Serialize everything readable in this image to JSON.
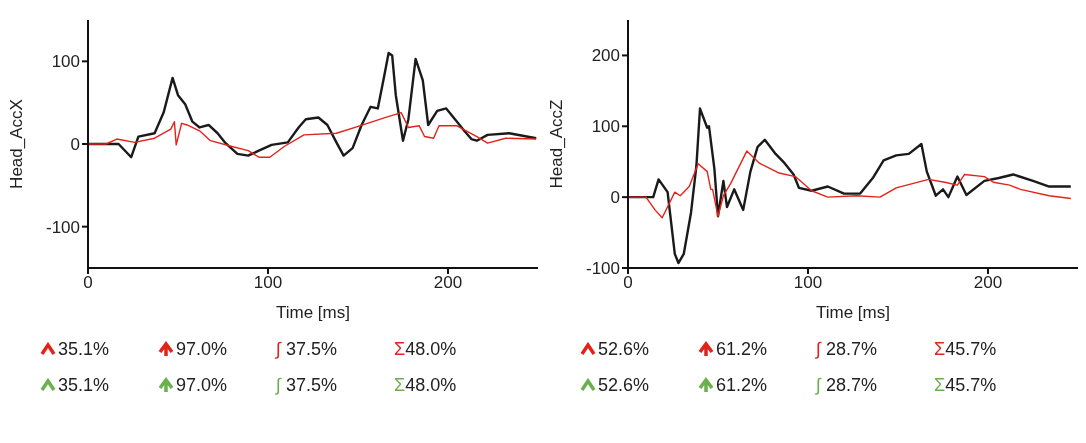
{
  "chart_data": [
    {
      "type": "line",
      "xlabel": "Time [ms]",
      "ylabel": "Head_AccX",
      "xlim": [
        0,
        250
      ],
      "ylim": [
        -150,
        150
      ],
      "xticks": [
        0,
        100,
        200
      ],
      "yticks": [
        -100,
        0,
        100
      ],
      "series": [
        {
          "color": "#1a1a1a",
          "x": [
            0,
            17,
            24,
            28,
            37,
            42,
            47,
            50,
            54,
            58,
            62,
            67,
            72,
            76,
            83,
            89,
            94,
            102,
            111,
            117,
            121,
            128,
            133,
            138,
            142,
            147,
            152,
            157,
            161,
            165,
            167,
            169,
            171,
            175,
            178,
            182,
            186,
            189,
            194,
            199,
            205,
            209,
            213,
            216,
            222,
            234,
            249
          ],
          "values": [
            0,
            0,
            -16,
            9,
            13,
            38,
            80,
            59,
            48,
            27,
            20,
            23,
            13,
            2,
            -12,
            -14,
            -9,
            -1,
            2,
            20,
            30,
            32,
            23,
            2,
            -14,
            -5,
            23,
            45,
            43,
            87,
            110,
            107,
            59,
            4,
            30,
            103,
            77,
            23,
            40,
            43,
            27,
            16,
            6,
            4,
            11,
            13,
            7
          ]
        },
        {
          "color": "#e2231a",
          "x": [
            0,
            10,
            16,
            26,
            37,
            46,
            48,
            49,
            52,
            55,
            62,
            68,
            80,
            89,
            95,
            101,
            109,
            120,
            138,
            151,
            165,
            174,
            178,
            184,
            187,
            192,
            195,
            205,
            216,
            222,
            232,
            249
          ],
          "values": [
            0,
            0,
            6,
            2,
            7,
            18,
            27,
            -1,
            25,
            23,
            16,
            4,
            -3,
            -8,
            -16,
            -16,
            -3,
            11,
            13,
            22,
            32,
            38,
            20,
            22,
            9,
            7,
            22,
            22,
            9,
            1,
            7,
            6
          ]
        }
      ],
      "annotations": [
        "35.1%",
        "97.0%",
        "∫ 37.5%",
        "Σ48.0%",
        "35.1%",
        "97.0%",
        "∫ 37.5%",
        "Σ48.0%"
      ]
    },
    {
      "type": "line",
      "xlabel": "Time [ms]",
      "ylabel": "Head_AccZ",
      "xlim": [
        0,
        250
      ],
      "ylim": [
        -100,
        250
      ],
      "xticks": [
        0,
        100,
        200
      ],
      "yticks": [
        -100,
        0,
        100,
        200
      ],
      "series": [
        {
          "color": "#1a1a1a",
          "x": [
            0,
            14,
            17,
            22,
            26,
            28,
            31,
            35,
            38,
            40,
            44,
            45,
            48,
            50,
            53,
            55,
            59,
            64,
            68,
            72,
            76,
            82,
            87,
            92,
            95,
            102,
            111,
            120,
            129,
            136,
            142,
            149,
            156,
            163,
            166,
            171,
            175,
            178,
            183,
            188,
            198,
            206,
            214,
            225,
            234,
            246
          ],
          "values": [
            0,
            0,
            25,
            7,
            -80,
            -93,
            -80,
            -22,
            44,
            125,
            98,
            100,
            40,
            -27,
            23,
            -14,
            11,
            -18,
            36,
            71,
            81,
            61,
            48,
            32,
            13,
            9,
            15,
            5,
            5,
            27,
            52,
            59,
            61,
            75,
            36,
            2,
            11,
            0,
            29,
            3,
            23,
            27,
            32,
            23,
            15,
            15
          ]
        },
        {
          "color": "#e2231a",
          "x": [
            0,
            10,
            15,
            19,
            26,
            29,
            34,
            39,
            44,
            46,
            47,
            50,
            53,
            57,
            66,
            73,
            84,
            93,
            102,
            111,
            127,
            140,
            149,
            167,
            176,
            183,
            187,
            198,
            203,
            212,
            218,
            234,
            246
          ],
          "values": [
            0,
            0,
            -18,
            -29,
            7,
            2,
            15,
            47,
            36,
            11,
            11,
            -27,
            2,
            19,
            65,
            48,
            34,
            29,
            9,
            0,
            2,
            0,
            13,
            25,
            21,
            17,
            32,
            29,
            21,
            17,
            11,
            2,
            -2
          ]
        }
      ],
      "annotations": [
        "52.6%",
        "61.2%",
        "∫ 28.7%",
        "Σ45.7%",
        "52.6%",
        "61.2%",
        "∫ 28.7%",
        "Σ45.7%"
      ]
    }
  ]
}
